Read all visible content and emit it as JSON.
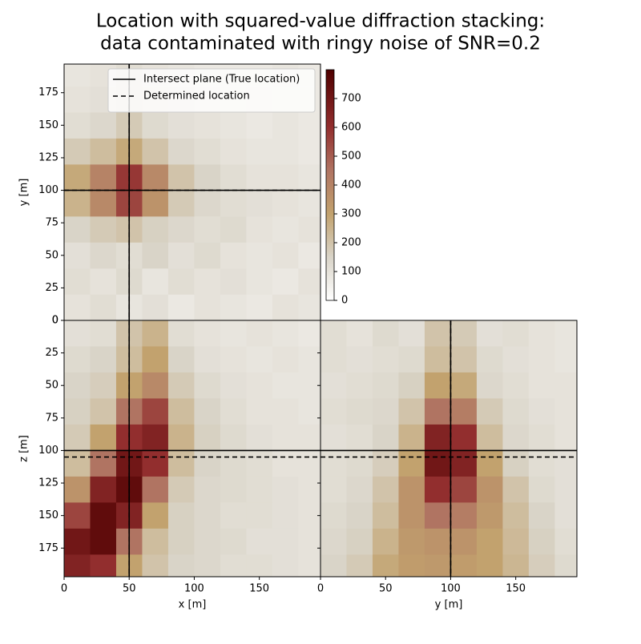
{
  "chart_data": [
    {
      "type": "heatmap",
      "title": [
        "Location with squared-value diffraction stacking:",
        "data contaminated with ringy noise of SNR=0.2"
      ],
      "ylabel": "y [m]",
      "xlim": [
        0,
        197
      ],
      "ylim": [
        0,
        197
      ],
      "yticks": [
        0,
        25,
        50,
        75,
        100,
        125,
        150,
        175
      ],
      "ytick_labels": true,
      "x_edges": [
        0,
        20,
        40,
        60,
        80,
        100,
        120,
        140,
        160,
        180,
        197
      ],
      "y_edges": [
        0,
        20,
        40,
        60,
        80,
        100,
        120,
        140,
        160,
        180,
        197
      ],
      "values": [
        [
          100,
          120,
          90,
          110,
          80,
          100,
          90,
          80,
          100,
          90
        ],
        [
          120,
          100,
          130,
          90,
          120,
          100,
          110,
          90,
          80,
          100
        ],
        [
          110,
          140,
          120,
          150,
          110,
          130,
          100,
          90,
          100,
          80
        ],
        [
          150,
          180,
          200,
          160,
          140,
          120,
          130,
          100,
          90,
          100
        ],
        [
          250,
          380,
          550,
          350,
          180,
          140,
          120,
          110,
          100,
          90
        ],
        [
          280,
          400,
          580,
          380,
          200,
          150,
          120,
          100,
          100,
          90
        ],
        [
          180,
          220,
          280,
          200,
          140,
          120,
          100,
          90,
          90,
          80
        ],
        [
          120,
          140,
          180,
          130,
          110,
          100,
          90,
          80,
          90,
          80
        ],
        [
          100,
          110,
          130,
          110,
          100,
          90,
          80,
          90,
          80,
          80
        ],
        [
          90,
          100,
          120,
          100,
          90,
          80,
          80,
          80,
          90,
          80
        ]
      ],
      "lines": [
        {
          "name": "Intersect plane (True location)",
          "style": "solid",
          "x": 50,
          "y": 100
        },
        {
          "name": "Determined location",
          "style": "dashed",
          "x": 50,
          "y": 100
        }
      ],
      "legend": "upper right",
      "colorbar": {
        "lim": [
          0,
          800
        ],
        "ticks": [
          0,
          100,
          200,
          300,
          400,
          500,
          600,
          700
        ]
      },
      "colormap": [
        {
          "value": 0,
          "color": "#ffffff"
        },
        {
          "value": 150,
          "color": "#d9d4c8"
        },
        {
          "value": 300,
          "color": "#c2a26e"
        },
        {
          "value": 450,
          "color": "#b07462"
        },
        {
          "value": 600,
          "color": "#922e2e"
        },
        {
          "value": 800,
          "color": "#4f0000"
        }
      ]
    },
    {
      "type": "heatmap",
      "xlabel": "x [m]",
      "ylabel": "z [m]",
      "xlim": [
        0,
        197
      ],
      "ylim": [
        197,
        0
      ],
      "xticks": [
        0,
        50,
        100,
        150
      ],
      "yticks": [
        0,
        25,
        50,
        75,
        100,
        125,
        150,
        175
      ],
      "ytick_labels": true,
      "x_edges": [
        0,
        20,
        40,
        60,
        80,
        100,
        120,
        140,
        160,
        180,
        197
      ],
      "y_edges": [
        0,
        20,
        40,
        60,
        80,
        100,
        120,
        140,
        160,
        180,
        197
      ],
      "values": [
        [
          110,
          120,
          200,
          250,
          120,
          100,
          90,
          100,
          90,
          80
        ],
        [
          130,
          150,
          220,
          300,
          150,
          110,
          100,
          90,
          100,
          90
        ],
        [
          150,
          170,
          300,
          380,
          180,
          130,
          110,
          100,
          90,
          90
        ],
        [
          160,
          200,
          450,
          550,
          220,
          150,
          120,
          100,
          100,
          90
        ],
        [
          180,
          300,
          600,
          650,
          250,
          160,
          130,
          110,
          100,
          100
        ],
        [
          220,
          450,
          700,
          600,
          220,
          150,
          130,
          120,
          100,
          100
        ],
        [
          350,
          650,
          750,
          450,
          180,
          140,
          130,
          120,
          110,
          100
        ],
        [
          550,
          750,
          650,
          300,
          160,
          140,
          120,
          120,
          110,
          100
        ],
        [
          700,
          750,
          450,
          220,
          160,
          140,
          130,
          110,
          110,
          100
        ],
        [
          650,
          600,
          300,
          200,
          150,
          140,
          120,
          120,
          110,
          100
        ]
      ],
      "lines": [
        {
          "style": "solid",
          "x": 50,
          "y": 100
        },
        {
          "style": "dashed",
          "x": 50,
          "y": 105
        }
      ]
    },
    {
      "type": "heatmap",
      "xlabel": "y [m]",
      "xlim": [
        0,
        197
      ],
      "ylim": [
        197,
        0
      ],
      "xticks": [
        0,
        50,
        100,
        150
      ],
      "yticks": [
        0,
        25,
        50,
        75,
        100,
        125,
        150,
        175
      ],
      "ytick_labels": false,
      "x_edges": [
        0,
        20,
        40,
        60,
        80,
        100,
        120,
        140,
        160,
        180,
        197
      ],
      "y_edges": [
        0,
        20,
        40,
        60,
        80,
        100,
        120,
        140,
        160,
        180,
        197
      ],
      "values": [
        [
          120,
          100,
          130,
          110,
          200,
          180,
          110,
          120,
          100,
          90
        ],
        [
          120,
          110,
          120,
          130,
          220,
          200,
          130,
          110,
          100,
          90
        ],
        [
          110,
          120,
          130,
          160,
          300,
          280,
          140,
          120,
          100,
          100
        ],
        [
          120,
          130,
          140,
          200,
          450,
          420,
          180,
          130,
          110,
          100
        ],
        [
          110,
          120,
          150,
          250,
          650,
          600,
          220,
          140,
          120,
          100
        ],
        [
          120,
          130,
          170,
          300,
          700,
          650,
          300,
          160,
          120,
          110
        ],
        [
          120,
          140,
          200,
          350,
          600,
          550,
          350,
          200,
          130,
          110
        ],
        [
          130,
          150,
          220,
          350,
          450,
          420,
          330,
          220,
          150,
          110
        ],
        [
          140,
          160,
          250,
          330,
          350,
          350,
          300,
          230,
          160,
          120
        ],
        [
          150,
          180,
          280,
          320,
          330,
          320,
          300,
          240,
          170,
          130
        ]
      ],
      "lines": [
        {
          "style": "solid",
          "x": 100,
          "y": 100
        },
        {
          "style": "dashed",
          "x": 100,
          "y": 105
        }
      ]
    }
  ]
}
